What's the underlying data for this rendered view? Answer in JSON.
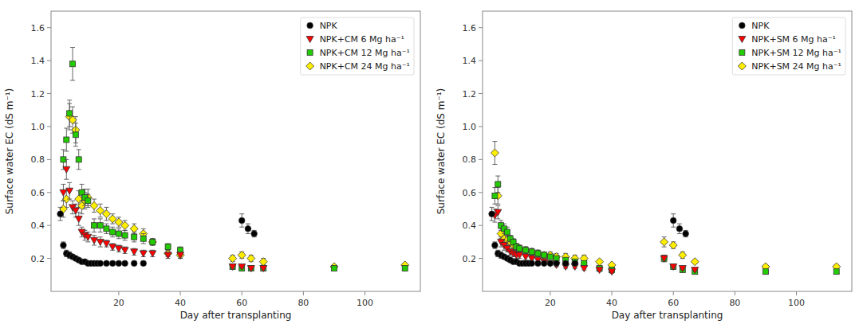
{
  "chart_data": [
    {
      "type": "scatter",
      "xlabel": "Day after transplanting",
      "ylabel": "Surface water EC (dS m⁻¹)",
      "xlim": [
        -2,
        118
      ],
      "xticks": [
        20,
        40,
        60,
        80,
        100
      ],
      "ylim": [
        0.0,
        1.7
      ],
      "yticks": [
        0.2,
        0.4,
        0.6,
        0.8,
        {
          "value": 1.0,
          "label": "1.0"
        },
        1.2,
        1.4,
        1.6
      ],
      "grid": false,
      "legend": "upper right",
      "series": [
        {
          "name": "NPK",
          "color": "#000000",
          "marker": "circle",
          "x": [
            1,
            2,
            3,
            4,
            5,
            6,
            7,
            8,
            9,
            10,
            11,
            12,
            13,
            14,
            16,
            18,
            20,
            22,
            25,
            28,
            60,
            62,
            64
          ],
          "values": [
            0.47,
            0.28,
            0.23,
            0.22,
            0.21,
            0.2,
            0.19,
            0.18,
            0.18,
            0.17,
            0.17,
            0.17,
            0.17,
            0.17,
            0.17,
            0.17,
            0.17,
            0.17,
            0.17,
            0.17,
            0.43,
            0.38,
            0.35
          ],
          "errors": [
            0.04,
            0.02,
            0.02,
            0.02,
            0.01,
            0.01,
            0.01,
            0.01,
            0.01,
            0.01,
            0.01,
            0.01,
            0.01,
            0.01,
            0.01,
            0.01,
            0.01,
            0.01,
            0.01,
            0.01,
            0.04,
            0.03,
            0.02
          ]
        },
        {
          "name": "NPK+CM 6 Mg ha⁻¹",
          "color": "#ff0000",
          "marker": "triangle-down",
          "x": [
            2,
            3,
            4,
            5,
            6,
            7,
            8,
            9,
            10,
            12,
            14,
            16,
            18,
            20,
            22,
            25,
            28,
            31,
            36,
            40,
            57,
            60,
            63,
            67
          ],
          "values": [
            0.6,
            0.74,
            0.61,
            0.51,
            0.49,
            0.44,
            0.36,
            0.34,
            0.33,
            0.31,
            0.3,
            0.29,
            0.27,
            0.26,
            0.25,
            0.24,
            0.23,
            0.23,
            0.22,
            0.22,
            0.15,
            0.15,
            0.14,
            0.14
          ],
          "errors": [
            0.05,
            0.06,
            0.05,
            0.04,
            0.04,
            0.04,
            0.03,
            0.03,
            0.03,
            0.03,
            0.03,
            0.02,
            0.02,
            0.02,
            0.02,
            0.02,
            0.02,
            0.02,
            0.02,
            0.02,
            0.01,
            0.01,
            0.01,
            0.01
          ]
        },
        {
          "name": "NPK+CM 12 Mg ha⁻¹",
          "color": "#22cc00",
          "marker": "square",
          "x": [
            2,
            3,
            4,
            5,
            6,
            7,
            8,
            9,
            10,
            12,
            14,
            16,
            18,
            20,
            22,
            25,
            28,
            31,
            36,
            40,
            57,
            60,
            63,
            67,
            90,
            113
          ],
          "values": [
            0.8,
            0.92,
            1.08,
            1.38,
            0.95,
            0.8,
            0.6,
            0.57,
            0.55,
            0.4,
            0.4,
            0.38,
            0.36,
            0.35,
            0.34,
            0.33,
            0.32,
            0.3,
            0.27,
            0.25,
            0.15,
            0.14,
            0.14,
            0.14,
            0.14,
            0.14
          ],
          "errors": [
            0.06,
            0.07,
            0.08,
            0.1,
            0.07,
            0.06,
            0.05,
            0.05,
            0.04,
            0.04,
            0.04,
            0.03,
            0.03,
            0.03,
            0.03,
            0.03,
            0.03,
            0.02,
            0.02,
            0.02,
            0.01,
            0.01,
            0.01,
            0.01,
            0.01,
            0.01
          ]
        },
        {
          "name": "NPK+CM 24 Mg ha⁻¹",
          "color": "#ffee00",
          "marker": "diamond",
          "x": [
            2,
            3,
            4,
            5,
            6,
            7,
            8,
            9,
            10,
            12,
            14,
            16,
            18,
            20,
            22,
            25,
            28,
            31,
            36,
            40,
            57,
            60,
            63,
            67,
            90,
            113
          ],
          "values": [
            0.5,
            0.56,
            1.06,
            1.04,
            0.98,
            0.56,
            0.52,
            0.55,
            0.57,
            0.52,
            0.49,
            0.47,
            0.44,
            0.42,
            0.4,
            0.38,
            0.35,
            0.3,
            0.23,
            0.22,
            0.2,
            0.22,
            0.2,
            0.18,
            0.15,
            0.16
          ],
          "errors": [
            0.05,
            0.05,
            0.08,
            0.08,
            0.08,
            0.05,
            0.05,
            0.05,
            0.05,
            0.04,
            0.04,
            0.04,
            0.03,
            0.03,
            0.03,
            0.03,
            0.03,
            0.02,
            0.02,
            0.02,
            0.02,
            0.02,
            0.02,
            0.02,
            0.01,
            0.01
          ]
        }
      ]
    },
    {
      "type": "scatter",
      "xlabel": "Day after transplanting",
      "ylabel": "Surface water EC (dS m⁻¹)",
      "xlim": [
        -2,
        118
      ],
      "xticks": [
        20,
        40,
        60,
        80,
        100
      ],
      "ylim": [
        0.0,
        1.7
      ],
      "yticks": [
        0.2,
        0.4,
        0.6,
        0.8,
        {
          "value": 1.0,
          "label": "1.0"
        },
        1.2,
        1.4,
        1.6
      ],
      "grid": false,
      "legend": "upper right",
      "series": [
        {
          "name": "NPK",
          "color": "#000000",
          "marker": "circle",
          "x": [
            1,
            2,
            3,
            4,
            5,
            6,
            7,
            8,
            9,
            10,
            11,
            12,
            13,
            14,
            16,
            18,
            20,
            22,
            25,
            28,
            60,
            62,
            64
          ],
          "values": [
            0.47,
            0.28,
            0.23,
            0.22,
            0.21,
            0.2,
            0.19,
            0.18,
            0.18,
            0.17,
            0.17,
            0.17,
            0.17,
            0.17,
            0.17,
            0.17,
            0.17,
            0.17,
            0.17,
            0.17,
            0.43,
            0.38,
            0.35
          ],
          "errors": [
            0.04,
            0.02,
            0.02,
            0.02,
            0.01,
            0.01,
            0.01,
            0.01,
            0.01,
            0.01,
            0.01,
            0.01,
            0.01,
            0.01,
            0.01,
            0.01,
            0.01,
            0.01,
            0.01,
            0.01,
            0.04,
            0.03,
            0.02
          ]
        },
        {
          "name": "NPK+SM 6 Mg ha⁻¹",
          "color": "#ff0000",
          "marker": "triangle-down",
          "x": [
            2,
            3,
            4,
            5,
            6,
            7,
            8,
            9,
            10,
            12,
            14,
            16,
            18,
            20,
            22,
            25,
            28,
            31,
            36,
            40,
            57,
            60,
            63,
            67
          ],
          "values": [
            0.46,
            0.48,
            0.3,
            0.28,
            0.26,
            0.24,
            0.23,
            0.22,
            0.22,
            0.21,
            0.2,
            0.19,
            0.18,
            0.17,
            0.16,
            0.15,
            0.15,
            0.14,
            0.13,
            0.12,
            0.2,
            0.15,
            0.14,
            0.13
          ],
          "errors": [
            0.04,
            0.04,
            0.03,
            0.03,
            0.02,
            0.02,
            0.02,
            0.02,
            0.02,
            0.02,
            0.01,
            0.01,
            0.01,
            0.01,
            0.01,
            0.01,
            0.01,
            0.01,
            0.01,
            0.01,
            0.02,
            0.01,
            0.01,
            0.01
          ]
        },
        {
          "name": "NPK+SM 12 Mg ha⁻¹",
          "color": "#22cc00",
          "marker": "square",
          "x": [
            2,
            3,
            4,
            5,
            6,
            7,
            8,
            9,
            10,
            12,
            14,
            16,
            18,
            20,
            22,
            25,
            28,
            31,
            36,
            40,
            57,
            60,
            63,
            67,
            90,
            113
          ],
          "values": [
            0.58,
            0.65,
            0.4,
            0.38,
            0.36,
            0.32,
            0.3,
            0.27,
            0.26,
            0.25,
            0.24,
            0.23,
            0.22,
            0.21,
            0.2,
            0.19,
            0.18,
            0.17,
            0.14,
            0.13,
            0.2,
            0.15,
            0.13,
            0.12,
            0.12,
            0.12
          ],
          "errors": [
            0.05,
            0.05,
            0.03,
            0.03,
            0.03,
            0.02,
            0.02,
            0.02,
            0.02,
            0.02,
            0.02,
            0.02,
            0.01,
            0.01,
            0.01,
            0.01,
            0.01,
            0.01,
            0.01,
            0.01,
            0.02,
            0.01,
            0.01,
            0.01,
            0.01,
            0.01
          ]
        },
        {
          "name": "NPK+SM 24 Mg ha⁻¹",
          "color": "#ffee00",
          "marker": "diamond",
          "x": [
            2,
            3,
            4,
            5,
            6,
            7,
            8,
            9,
            10,
            12,
            14,
            16,
            18,
            20,
            22,
            25,
            28,
            31,
            36,
            40,
            57,
            60,
            63,
            67,
            90,
            113
          ],
          "values": [
            0.84,
            0.58,
            0.35,
            0.32,
            0.31,
            0.3,
            0.28,
            0.27,
            0.26,
            0.25,
            0.24,
            0.23,
            0.22,
            0.22,
            0.21,
            0.21,
            0.2,
            0.2,
            0.18,
            0.16,
            0.3,
            0.28,
            0.22,
            0.18,
            0.15,
            0.15
          ],
          "errors": [
            0.07,
            0.05,
            0.03,
            0.03,
            0.03,
            0.02,
            0.02,
            0.02,
            0.02,
            0.02,
            0.02,
            0.02,
            0.02,
            0.02,
            0.02,
            0.02,
            0.02,
            0.02,
            0.01,
            0.01,
            0.03,
            0.02,
            0.02,
            0.01,
            0.01,
            0.01
          ]
        }
      ]
    }
  ]
}
